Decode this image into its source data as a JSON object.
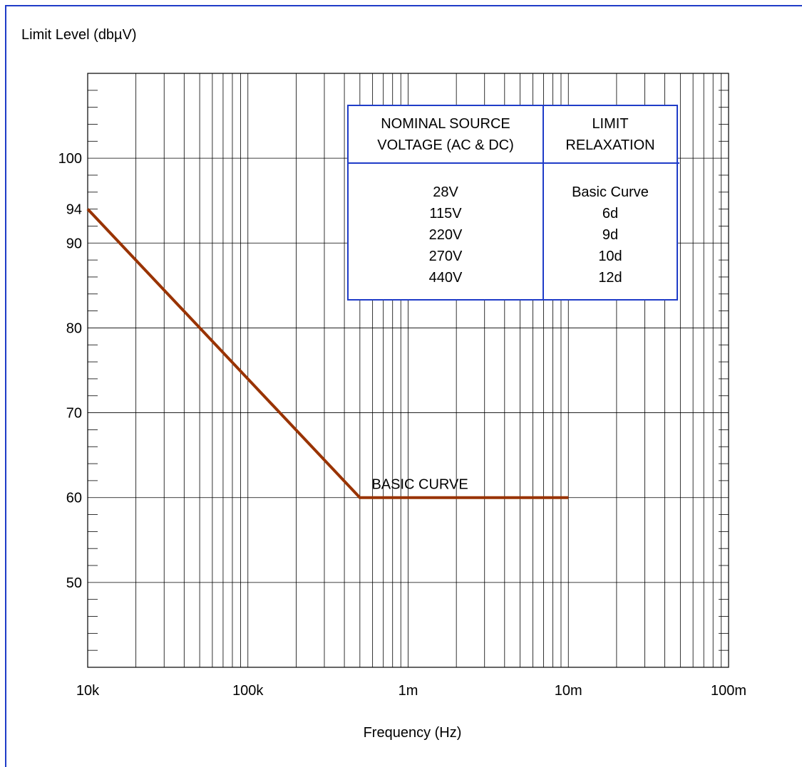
{
  "chart_data": {
    "type": "line",
    "title": "",
    "ylabel": "Limit Level (dbµV)",
    "xlabel": "Frequency (Hz)",
    "x_scale": "log",
    "xlim": [
      10000,
      100000000
    ],
    "ylim": [
      40,
      110
    ],
    "grid": true,
    "x_ticks": [
      {
        "value": 10000,
        "label": "10k"
      },
      {
        "value": 100000,
        "label": "100k"
      },
      {
        "value": 1000000,
        "label": "1m"
      },
      {
        "value": 10000000,
        "label": "10m"
      },
      {
        "value": 100000000,
        "label": "100m"
      }
    ],
    "y_ticks": [
      {
        "value": 50,
        "label": "50"
      },
      {
        "value": 60,
        "label": "60"
      },
      {
        "value": 70,
        "label": "70"
      },
      {
        "value": 80,
        "label": "80"
      },
      {
        "value": 90,
        "label": "90"
      },
      {
        "value": 94,
        "label": "94"
      },
      {
        "value": 100,
        "label": "100"
      }
    ],
    "series": [
      {
        "name": "BASIC CURVE",
        "color": "#993300",
        "points": [
          {
            "x": 10000,
            "y": 94
          },
          {
            "x": 500000,
            "y": 60
          },
          {
            "x": 10000000,
            "y": 60
          }
        ]
      }
    ],
    "annotations": [
      {
        "text": "BASIC CURVE",
        "x": 650000,
        "y": 60
      }
    ],
    "table": {
      "headers": [
        [
          "NOMINAL SOURCE",
          "VOLTAGE (AC & DC)"
        ],
        [
          "LIMIT",
          "RELAXATION"
        ]
      ],
      "rows": [
        [
          "28V",
          "Basic Curve"
        ],
        [
          "115V",
          "6d"
        ],
        [
          "220V",
          "9d"
        ],
        [
          "270V",
          "10d"
        ],
        [
          "440V",
          "12d"
        ]
      ]
    },
    "colors": {
      "frame": "#1f3cc8",
      "table_border": "#1f3cc8",
      "grid": "#000000",
      "curve": "#993300"
    }
  }
}
